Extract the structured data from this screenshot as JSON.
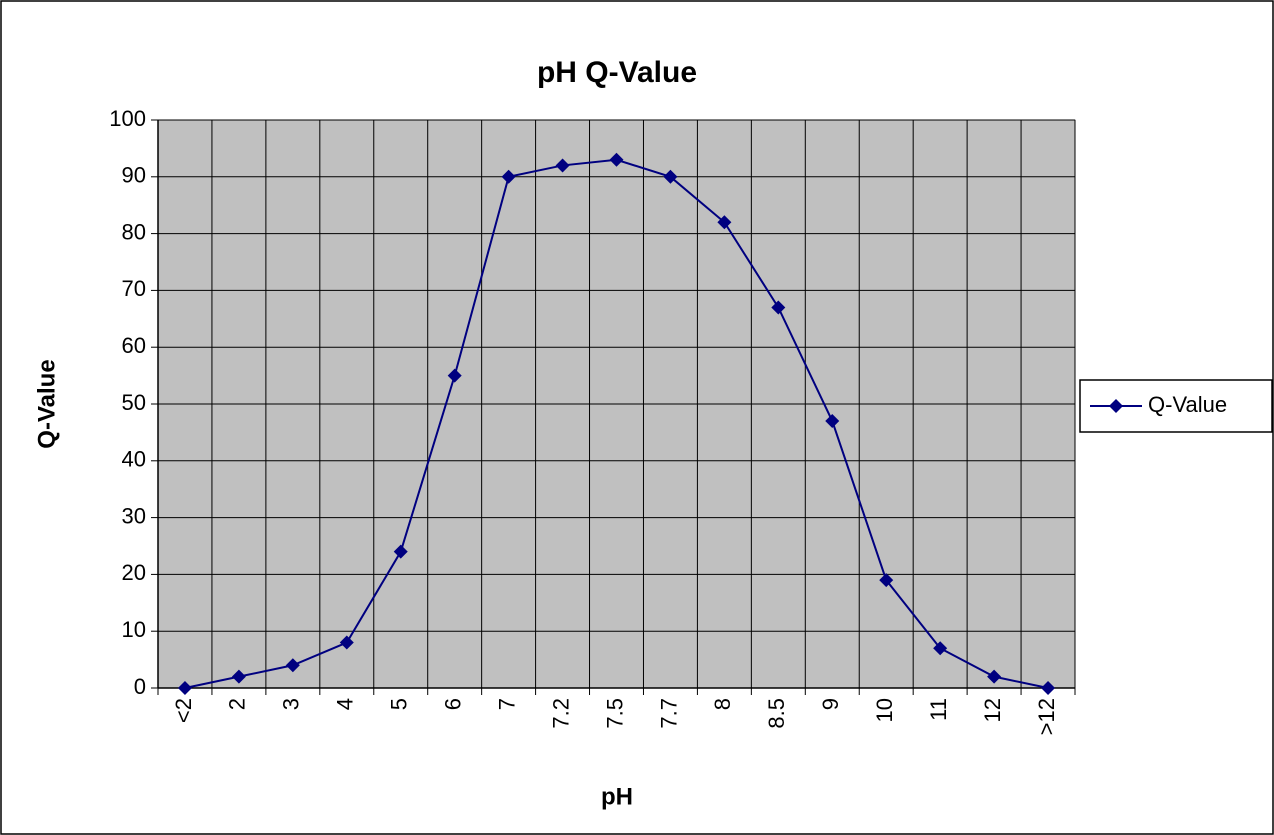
{
  "chart_data": {
    "type": "line",
    "title": "pH Q-Value",
    "xlabel": "pH",
    "ylabel": "Q-Value",
    "categories": [
      "<2",
      "2",
      "3",
      "4",
      "5",
      "6",
      "7",
      "7.2",
      "7.5",
      "7.7",
      "8",
      "8.5",
      "9",
      "10",
      "11",
      "12",
      ">12"
    ],
    "series": [
      {
        "name": "Q-Value",
        "color": "#000080",
        "values": [
          0,
          2,
          4,
          8,
          24,
          55,
          90,
          92,
          93,
          90,
          82,
          67,
          47,
          19,
          7,
          2,
          0
        ]
      }
    ],
    "ylim": [
      0,
      100
    ],
    "yticks": [
      0,
      10,
      20,
      30,
      40,
      50,
      60,
      70,
      80,
      90,
      100
    ],
    "grid": true,
    "legend": "right",
    "plot_background": "#c0c0c0"
  }
}
